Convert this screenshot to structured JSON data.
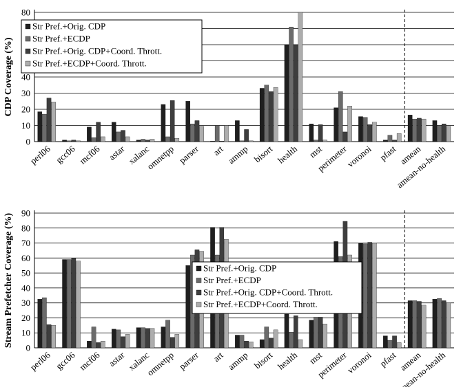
{
  "colors": {
    "series": [
      "#1f1f1f",
      "#6b6b6b",
      "#3e3e3e",
      "#adadad"
    ],
    "grid": "#000000",
    "separator": "#000000"
  },
  "chart_data": [
    {
      "type": "bar",
      "ylabel": "CDP Coverage (%)",
      "ylim": [
        0,
        80
      ],
      "yticks": [
        0,
        10,
        20,
        30,
        40,
        50,
        60,
        70,
        80
      ],
      "grid": true,
      "legend_position": "top-left",
      "separator_after": "pfast",
      "categories": [
        "perl06",
        "gcc06",
        "mcf06",
        "astar",
        "xalanc",
        "omnetpp",
        "parser",
        "art",
        "ammp",
        "bisort",
        "health",
        "mst",
        "perimeter",
        "voronoi",
        "pfast",
        "amean",
        "amean-no-health"
      ],
      "series": [
        {
          "name": "Str Pref.+Orig. CDP",
          "values": [
            18.5,
            1,
            9,
            12,
            1,
            23,
            25,
            0.3,
            13,
            33,
            60,
            11,
            21,
            15.5,
            1,
            16.5,
            13
          ]
        },
        {
          "name": "Str Pref.+ECDP",
          "values": [
            17,
            0.5,
            2.5,
            6,
            1.5,
            3,
            11,
            10,
            0.5,
            35,
            71,
            1,
            31,
            15,
            4,
            14,
            10
          ]
        },
        {
          "name": "Str Pref.+Orig. CDP+Coord. Thrott.",
          "values": [
            27,
            1,
            12,
            7,
            1,
            25.5,
            13,
            0.3,
            7.5,
            31,
            60,
            10.5,
            6,
            10.5,
            1,
            14.5,
            11
          ]
        },
        {
          "name": "Str Pref.+ECDP+Coord. Thrott.",
          "values": [
            24.5,
            0.5,
            3,
            3,
            1.5,
            2,
            9.5,
            10,
            0.5,
            33.5,
            80,
            1,
            22,
            12,
            5,
            14,
            9.5
          ]
        }
      ]
    },
    {
      "type": "bar",
      "ylabel": "Stream Prefetcher Coverage (%)",
      "ylim": [
        0,
        90
      ],
      "yticks": [
        0,
        10,
        20,
        30,
        40,
        50,
        60,
        70,
        80,
        90
      ],
      "grid": true,
      "legend_position": "center",
      "separator_after": "pfast",
      "categories": [
        "perl06",
        "gcc06",
        "mcf06",
        "astar",
        "xalanc",
        "omnetpp",
        "parser",
        "art",
        "ammp",
        "bisort",
        "health",
        "mst",
        "perimeter",
        "voronoi",
        "pfast",
        "amean",
        "amean-no-health"
      ],
      "series": [
        {
          "name": "Str Pref.+Orig. CDP",
          "values": [
            32.5,
            59,
            4.5,
            12.5,
            13.5,
            14,
            55,
            80.5,
            8.5,
            5.5,
            22.5,
            18.5,
            71,
            70,
            8,
            31.5,
            32.5
          ]
        },
        {
          "name": "Str Pref.+ECDP",
          "values": [
            33.5,
            59,
            14,
            12,
            13.5,
            18.5,
            62,
            62,
            8.5,
            14,
            10.5,
            20.5,
            61,
            69.5,
            5,
            31.5,
            33
          ]
        },
        {
          "name": "Str Pref.+Orig. CDP+Coord. Thrott.",
          "values": [
            15.5,
            60,
            3.5,
            7.5,
            13,
            7,
            65.5,
            80.5,
            4.5,
            6.5,
            21.5,
            20.5,
            84.5,
            70.5,
            8,
            31,
            31.5
          ]
        },
        {
          "name": "Str Pref.+ECDP+Coord. Thrott.",
          "values": [
            15,
            58,
            4.5,
            9,
            13,
            9,
            64.5,
            72.5,
            4,
            12,
            5.5,
            16,
            62,
            70,
            3.5,
            28.5,
            30
          ]
        }
      ]
    }
  ]
}
